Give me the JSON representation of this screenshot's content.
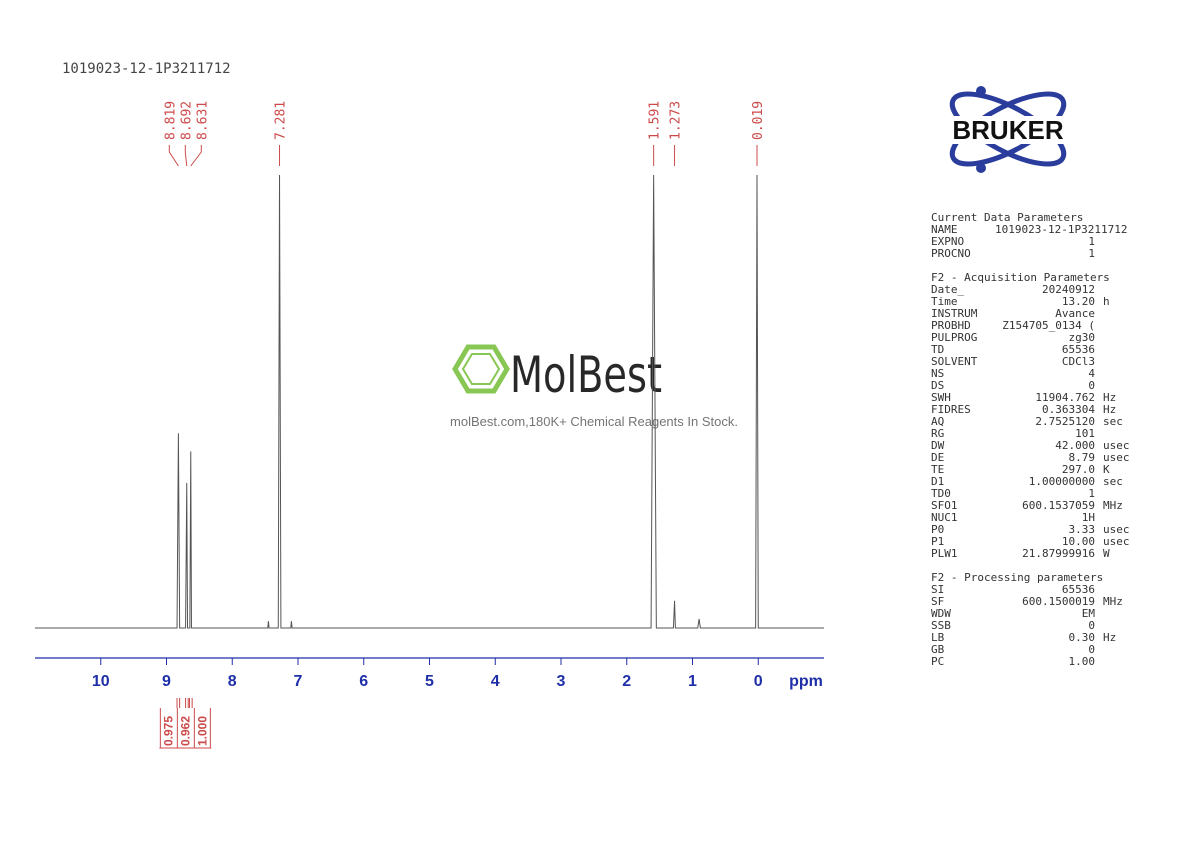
{
  "chart_data": {
    "type": "spectrum",
    "title": "1019023-12-1P3211712",
    "xlabel": "ppm",
    "x": [
      11.0,
      8.84,
      8.819,
      8.8,
      8.71,
      8.692,
      8.68,
      8.645,
      8.631,
      8.62,
      7.46,
      7.45,
      7.44,
      7.3,
      7.281,
      7.26,
      7.11,
      7.1,
      7.09,
      1.63,
      1.591,
      1.55,
      1.29,
      1.273,
      1.26,
      0.92,
      0.9,
      0.88,
      0.04,
      0.019,
      0.0,
      -1.0
    ],
    "values": [
      0,
      0,
      43,
      0,
      0,
      32,
      0,
      0,
      39,
      0,
      0,
      1.5,
      0,
      0,
      100,
      0,
      0,
      1.5,
      0,
      0,
      100,
      0,
      0,
      6,
      0,
      0,
      2,
      0,
      0,
      100,
      0,
      0
    ],
    "color": "#555555",
    "xlim": [
      11.0,
      -1.0
    ],
    "ylim": [
      0,
      100
    ],
    "xticks": [
      10,
      9,
      8,
      7,
      6,
      5,
      4,
      3,
      2,
      1,
      0
    ],
    "axis_color": "#1f2fa8",
    "peak_labels": [
      8.819,
      8.692,
      8.631,
      7.281,
      1.591,
      1.273,
      0.019
    ],
    "label_color": "#cc4a4a",
    "integrals": {
      "ranges": [
        [
          8.84,
          8.8
        ],
        [
          8.71,
          8.67
        ],
        [
          8.65,
          8.61
        ]
      ],
      "values": [
        0.975,
        0.962,
        {
          "value": 1,
          "label": "1.000"
        }
      ]
    }
  },
  "watermark": {
    "brand": "MolBest",
    "tagline": "molBest.com,180K+ Chemical Reagents In Stock."
  },
  "logo": "BRUKER",
  "params": {
    "sections": [
      {
        "title": "Current Data Parameters",
        "rows": [
          [
            "NAME",
            "1019023-12-1P3211712"
          ],
          [
            "EXPNO",
            "1"
          ],
          [
            "PROCNO",
            "1"
          ]
        ]
      },
      {
        "title": "F2 - Acquisition Parameters",
        "rows": [
          [
            "Date_",
            "20240912"
          ],
          [
            "Time",
            "13.20",
            "h"
          ],
          [
            "INSTRUM",
            "Avance"
          ],
          [
            "PROBHD",
            "Z154705_0134 ("
          ],
          [
            "PULPROG",
            "zg30"
          ],
          [
            "TD",
            "65536"
          ],
          [
            "SOLVENT",
            "CDCl3"
          ],
          [
            "NS",
            "4"
          ],
          [
            "DS",
            "0"
          ],
          [
            "SWH",
            "11904.762",
            "Hz"
          ],
          [
            "FIDRES",
            "0.363304",
            "Hz"
          ],
          [
            "AQ",
            "2.7525120",
            "sec"
          ],
          [
            "RG",
            "101"
          ],
          [
            "DW",
            "42.000",
            "usec"
          ],
          [
            "DE",
            "8.79",
            "usec"
          ],
          [
            "TE",
            "297.0",
            "K"
          ],
          [
            "D1",
            "1.00000000",
            "sec"
          ],
          [
            "TD0",
            "1"
          ],
          [
            "SFO1",
            "600.1537059",
            "MHz"
          ],
          [
            "NUC1",
            "1H"
          ],
          [
            "P0",
            "3.33",
            "usec"
          ],
          [
            "P1",
            "10.00",
            "usec"
          ],
          [
            "PLW1",
            "21.87999916",
            "W"
          ]
        ]
      },
      {
        "title": "F2 - Processing parameters",
        "rows": [
          [
            "SI",
            "65536"
          ],
          [
            "SF",
            "600.1500019",
            "MHz"
          ],
          [
            "WDW",
            "EM"
          ],
          [
            "SSB",
            "0"
          ],
          [
            "LB",
            "0.30",
            "Hz"
          ],
          [
            "GB",
            "0"
          ],
          [
            "PC",
            "1.00"
          ]
        ]
      }
    ]
  }
}
